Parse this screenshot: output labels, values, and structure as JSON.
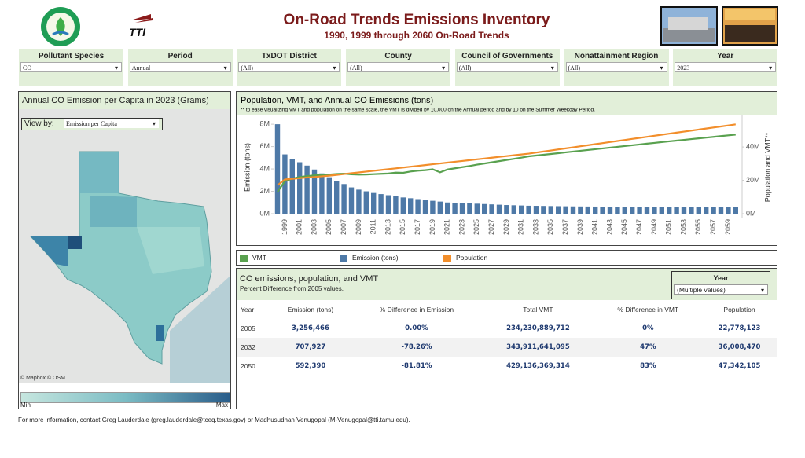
{
  "header": {
    "title": "On-Road Trends Emissions Inventory",
    "subtitle": "1990, 1999 through 2060 On-Road Trends",
    "logo_text": "TTI"
  },
  "filters": [
    {
      "label": "Pollutant Species",
      "value": "CO"
    },
    {
      "label": "Period",
      "value": "Annual"
    },
    {
      "label": "TxDOT District",
      "value": "(All)"
    },
    {
      "label": "County",
      "value": "(All)"
    },
    {
      "label": "Council of Governments",
      "value": "(All)"
    },
    {
      "label": "Nonattainment Region",
      "value": "(All)"
    },
    {
      "label": "Year",
      "value": "2023"
    }
  ],
  "map": {
    "title": "Annual CO Emission per Capita in 2023 (Grams)",
    "view_by_label": "View by:",
    "view_by_value": "Emission per Capita",
    "attribution": "© Mapbox  © OSM",
    "legend_min": "Min",
    "legend_max": "Max"
  },
  "chart_data": {
    "type": "combo",
    "title": "Population, VMT, and Annual CO Emissions (tons)",
    "note": "** to ease visualizing VMT and population on the same scale, the VMT is divided by 10,000 on the Annual period and by 10 on the Summer Weekday Period.",
    "y_label": "Emission (tons)",
    "y2_label": "Population and VMT**",
    "categories": [
      null,
      "1999",
      null,
      "2001",
      null,
      "2003",
      null,
      "2005",
      null,
      "2007",
      null,
      "2009",
      null,
      "2011",
      null,
      "2013",
      null,
      "2015",
      null,
      "2017",
      null,
      "2019",
      null,
      "2021",
      null,
      "2023",
      null,
      "2025",
      null,
      "2027",
      null,
      "2029",
      null,
      "2031",
      null,
      "2033",
      null,
      "2035",
      null,
      "2037",
      null,
      "2039",
      null,
      "2041",
      null,
      "2043",
      null,
      "2045",
      null,
      "2047",
      null,
      "2049",
      null,
      "2051",
      null,
      "2053",
      null,
      "2055",
      null,
      "2057",
      null,
      "2059",
      null
    ],
    "series": [
      {
        "name": "VMT",
        "type": "line",
        "axis": "y2",
        "color": "#59a14f",
        "values": [
          13000000,
          19500000,
          21000000,
          22000000,
          22500000,
          23000000,
          23200000,
          23423089,
          23800000,
          24000000,
          23600000,
          23400000,
          23500000,
          23700000,
          23900000,
          24100000,
          24600000,
          24500000,
          25300000,
          25800000,
          26100000,
          26600000,
          24800000,
          26500000,
          27200000,
          27900000,
          28600000,
          29400000,
          30100000,
          30800000,
          31500000,
          32200000,
          32900000,
          33600000,
          34391164,
          34860000,
          35340000,
          35810000,
          36280000,
          36760000,
          37230000,
          37710000,
          38180000,
          38650000,
          39130000,
          39600000,
          40070000,
          40550000,
          41020000,
          41490000,
          41970000,
          42440000,
          42913637,
          43360000,
          43810000,
          44260000,
          44710000,
          45160000,
          45610000,
          46060000,
          46510000,
          46960000,
          47410000
        ]
      },
      {
        "name": "Emission (tons)",
        "type": "bar",
        "color": "#4e79a7",
        "values": [
          8000000,
          5300000,
          4900000,
          4600000,
          4300000,
          3950000,
          3600000,
          3256466,
          2950000,
          2650000,
          2350000,
          2150000,
          2000000,
          1850000,
          1750000,
          1650000,
          1550000,
          1450000,
          1380000,
          1300000,
          1220000,
          1150000,
          1080000,
          1000000,
          980000,
          950000,
          920000,
          890000,
          860000,
          830000,
          800000,
          770000,
          750000,
          730000,
          707927,
          700000,
          690000,
          680000,
          670000,
          660000,
          650000,
          645000,
          640000,
          635000,
          630000,
          625000,
          620000,
          615000,
          610000,
          605000,
          600000,
          595000,
          592390,
          595000,
          600000,
          600000,
          605000,
          610000,
          610000,
          615000,
          620000,
          620000,
          625000
        ]
      },
      {
        "name": "Population",
        "type": "line",
        "axis": "y2",
        "color": "#f28e2b",
        "values": [
          17000000,
          20500000,
          20900000,
          21300000,
          21700000,
          22000000,
          22400000,
          22778123,
          23270000,
          23760000,
          24250000,
          24740000,
          25230000,
          25720000,
          26210000,
          26700000,
          27190000,
          27680000,
          28170000,
          28660000,
          29150000,
          29640000,
          30130000,
          30620000,
          31110000,
          31600000,
          32090000,
          32580000,
          33070000,
          33560000,
          34050000,
          34540000,
          35030000,
          35520000,
          36008470,
          36640000,
          37270000,
          37900000,
          38530000,
          39160000,
          39790000,
          40420000,
          41050000,
          41680000,
          42310000,
          42940000,
          43570000,
          44200000,
          44830000,
          45460000,
          46090000,
          46720000,
          47342105,
          47960000,
          48580000,
          49200000,
          49820000,
          50440000,
          51060000,
          51680000,
          52300000,
          52920000,
          53540000
        ]
      }
    ],
    "ylim": [
      0,
      8500000
    ],
    "yticks": [
      {
        "value": 0,
        "label": "0M"
      },
      {
        "value": 2000000,
        "label": "2M"
      },
      {
        "value": 4000000,
        "label": "4M"
      },
      {
        "value": 6000000,
        "label": "6M"
      },
      {
        "value": 8000000,
        "label": "8M"
      }
    ],
    "y2lim": [
      0,
      57000000
    ],
    "y2ticks": [
      {
        "value": 0,
        "label": "0M"
      },
      {
        "value": 20000000,
        "label": "20M"
      },
      {
        "value": 40000000,
        "label": "40M"
      }
    ],
    "grid": false
  },
  "table": {
    "title": "CO emissions, population, and VMT",
    "subtitle": "Percent Difference from 2005 values.",
    "filter_label": "Year",
    "filter_value": "(Multiple values)",
    "columns": [
      "Year",
      "Emission (tons)",
      "% Difference in Emission",
      "Total VMT",
      "% Difference in VMT",
      "Population"
    ],
    "rows": [
      [
        "2005",
        "3,256,466",
        "0.00%",
        "234,230,889,712",
        "0%",
        "22,778,123"
      ],
      [
        "2032",
        "707,927",
        "-78.26%",
        "343,911,641,095",
        "47%",
        "36,008,470"
      ],
      [
        "2050",
        "592,390",
        "-81.81%",
        "429,136,369,314",
        "83%",
        "47,342,105"
      ]
    ]
  },
  "footer": {
    "text_1": "For more information, contact Greg Lauderdale (",
    "link_1": "greg.lauderdale@tceq.texas.gov",
    "text_2": ") or Madhusudhan Venugopal (",
    "link_2": "M-Venugopal@tti.tamu.edu",
    "text_3": ")."
  }
}
